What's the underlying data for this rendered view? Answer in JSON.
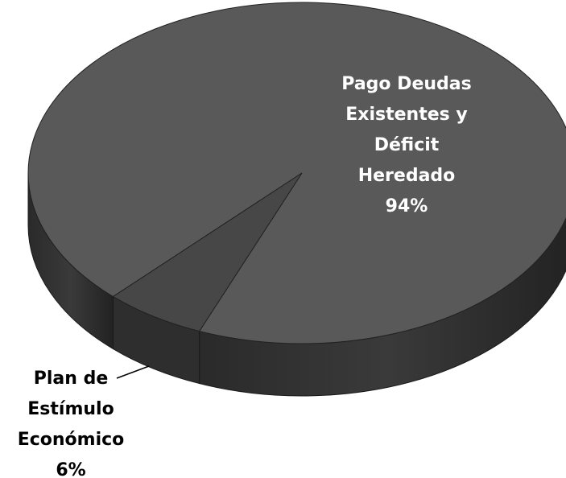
{
  "chart_data": {
    "type": "pie",
    "categories": [
      "Pago Deudas Existentes y Déficit Heredado",
      "Plan de Estímulo Económico"
    ],
    "values": [
      94,
      6
    ],
    "value_labels": [
      "94%",
      "6%"
    ],
    "colors": [
      "#595959",
      "#474747"
    ]
  }
}
